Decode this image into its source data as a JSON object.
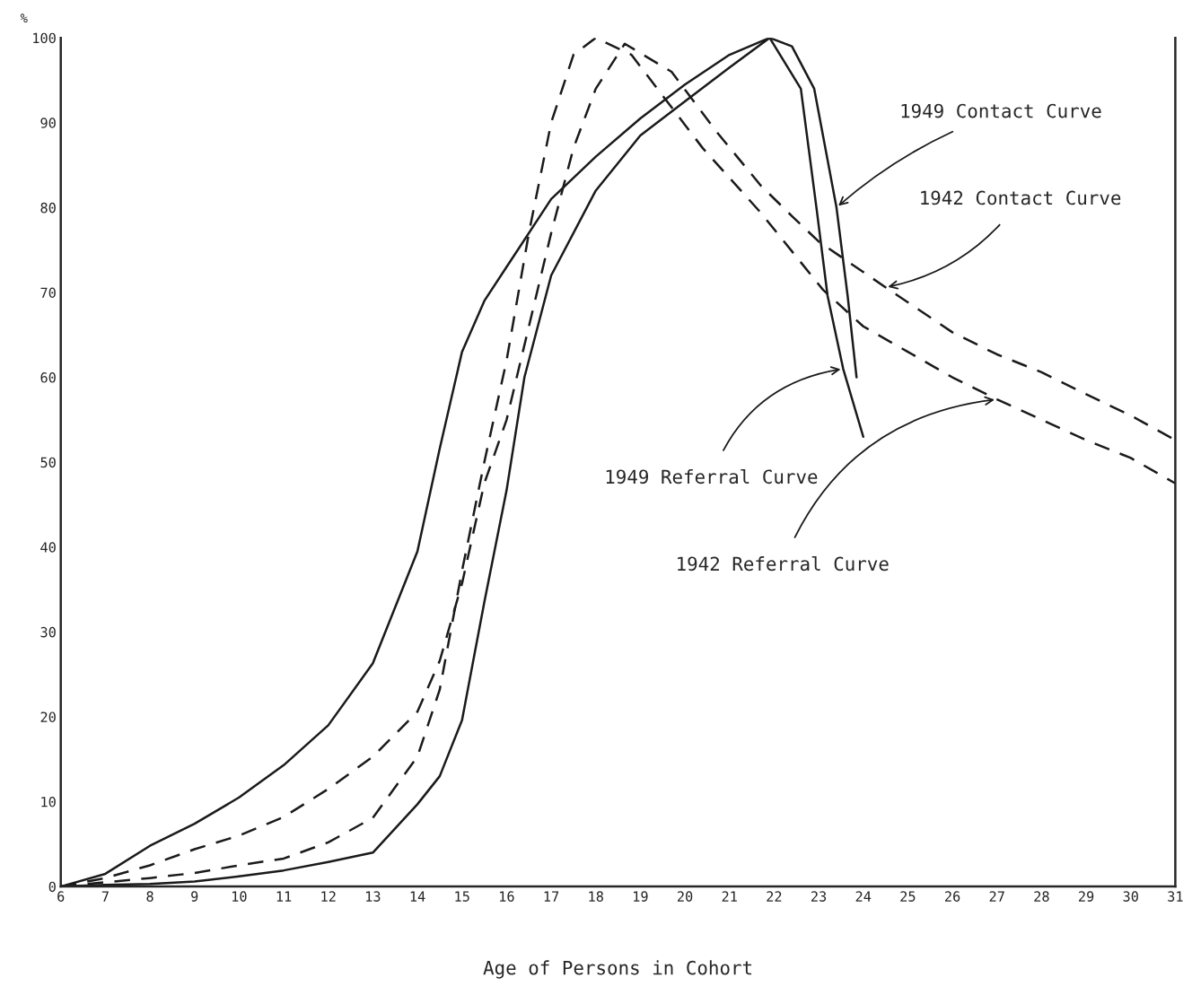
{
  "chart_data": {
    "type": "line",
    "xlabel": "Age of Persons in Cohort",
    "ylabel": "%",
    "xlim": [
      6,
      31
    ],
    "xticks": [
      6,
      7,
      8,
      9,
      10,
      11,
      12,
      13,
      14,
      15,
      16,
      17,
      18,
      19,
      20,
      21,
      22,
      23,
      24,
      25,
      26,
      27,
      28,
      29,
      30,
      31
    ],
    "ylim": [
      0,
      100
    ],
    "yticks": [
      0,
      10,
      20,
      30,
      40,
      50,
      60,
      70,
      80,
      90,
      100
    ],
    "grid": false,
    "legend": false,
    "marker": "none",
    "series": [
      {
        "color": "#1a1a1a",
        "line_style": "solid",
        "x": [
          6,
          7,
          8,
          9,
          10,
          11,
          12,
          13,
          14,
          14.5,
          15,
          15.5,
          16,
          17,
          18,
          19,
          20,
          21,
          21.9,
          22.4,
          22.9,
          23.4,
          23.65,
          23.85
        ],
        "values": [
          0,
          1.5,
          4.8,
          7.4,
          10.5,
          14.3,
          19,
          26.3,
          39.5,
          51.6,
          63,
          69,
          73,
          81,
          86,
          90.5,
          94.5,
          98,
          100,
          99,
          94,
          80,
          69.6,
          60
        ]
      },
      {
        "color": "#1a1a1a",
        "line_style": "solid",
        "x": [
          6,
          7,
          8,
          9,
          10,
          11,
          12,
          13,
          14,
          14.5,
          15,
          15.5,
          16,
          16.4,
          17,
          18,
          19,
          20,
          21,
          21.9,
          22.6,
          22.95,
          23.2,
          23.55,
          24.0
        ],
        "values": [
          0,
          0.2,
          0.3,
          0.6,
          1.2,
          1.9,
          2.9,
          4,
          9.7,
          13,
          19.6,
          33.5,
          46.7,
          60,
          72,
          82,
          88.5,
          92.5,
          96.5,
          100,
          94,
          80,
          69.6,
          61,
          53
        ]
      },
      {
        "color": "#1a1a1a",
        "line_style": "dashed",
        "x": [
          6,
          7,
          8,
          9,
          10,
          11,
          12,
          13,
          14,
          14.5,
          15,
          15.5,
          16,
          16.5,
          17,
          17.5,
          18,
          18.65,
          19.7,
          20.7,
          21.7,
          22.4,
          23,
          24.5,
          26,
          27,
          28,
          29,
          30,
          31
        ],
        "values": [
          0,
          1,
          2.5,
          4.4,
          6,
          8.2,
          11.5,
          15.3,
          20.6,
          26.6,
          35.7,
          47.5,
          55,
          66,
          77,
          87,
          94,
          99.3,
          96,
          89,
          82.6,
          79,
          76,
          70.6,
          65.3,
          62.7,
          60.6,
          58,
          55.5,
          52.6
        ]
      },
      {
        "color": "#1a1a1a",
        "line_style": "dashed",
        "x": [
          6,
          7,
          8,
          9,
          10,
          11,
          12,
          13,
          14,
          14.5,
          15,
          15.5,
          16,
          16.5,
          17,
          17.5,
          18,
          18.8,
          20.4,
          21.7,
          23.1,
          24,
          25,
          26,
          27,
          28,
          29,
          30,
          31
        ],
        "values": [
          0,
          0.5,
          1,
          1.6,
          2.5,
          3.3,
          5.2,
          8.1,
          15.3,
          23.2,
          37.2,
          50,
          62,
          77,
          90,
          98,
          100,
          98,
          87,
          79.4,
          70.3,
          66,
          63,
          60,
          57.4,
          55,
          52.6,
          50.5,
          47.5
        ]
      }
    ],
    "annotations": [
      {
        "text": "1949 Contact Curve",
        "x": 23.4,
        "y": 80
      },
      {
        "text": "1942 Contact Curve",
        "x": 24.5,
        "y": 70.6
      },
      {
        "text": "1949 Referral Curve",
        "x": 23.55,
        "y": 61
      },
      {
        "text": "1942 Referral Curve",
        "x": 27,
        "y": 57.4
      }
    ]
  }
}
